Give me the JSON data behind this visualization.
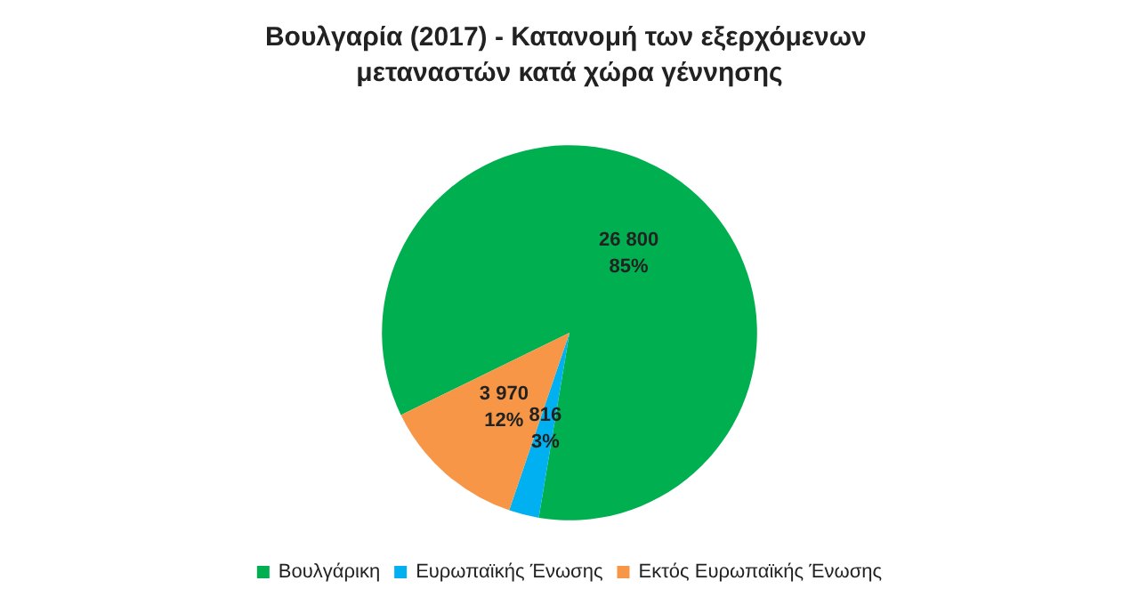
{
  "chart_data": {
    "type": "pie",
    "title": "Βουλγαρία (2017) - Κατανομή των εξερχόμενων μεταναστών κατά χώρα γέννησης",
    "categories": [
      "Βουλγάρικη",
      "Ευρωπαϊκής Ένωσης",
      "Εκτός Ευρωπαϊκής Ένωσης"
    ],
    "values": [
      26800,
      816,
      3970
    ],
    "value_labels": [
      "26 800\n85%",
      "816\n3%",
      "3 970\n12%"
    ],
    "colors": [
      "#00b050",
      "#00b0f0",
      "#f79646"
    ],
    "legend": "bottom"
  }
}
